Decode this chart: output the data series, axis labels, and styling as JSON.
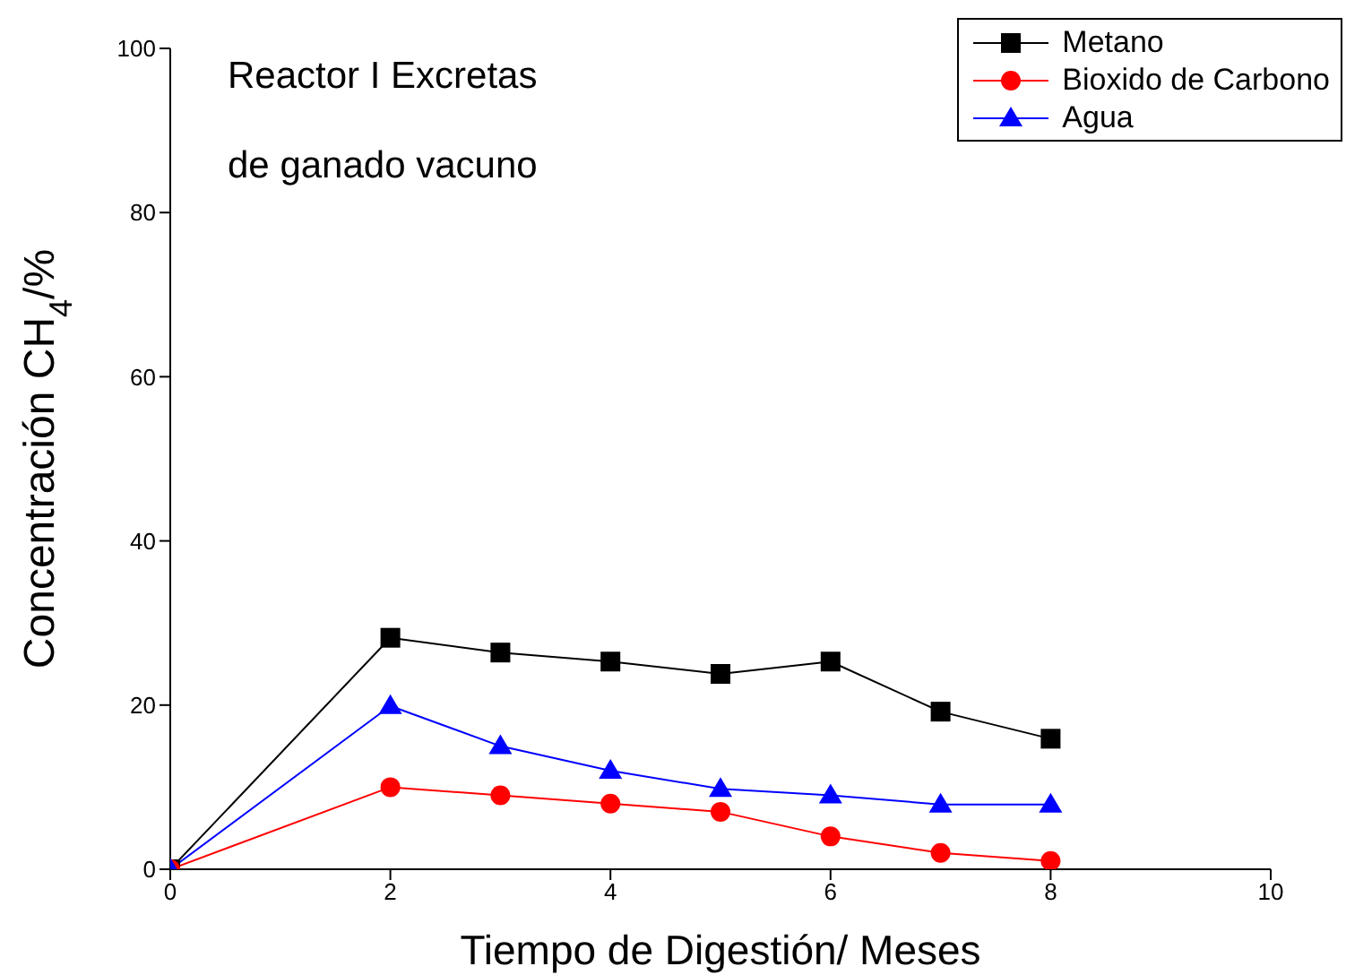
{
  "chart_data": {
    "type": "line",
    "xlabel": "Tiempo de Digestión/ Meses",
    "ylabel": "Concentración CH$_{4}$/%",
    "annotations": [
      "Reactor I  Excretas",
      "de ganado vacuno"
    ],
    "x": [
      0,
      2,
      3,
      4,
      5,
      6,
      7,
      8
    ],
    "series": [
      {
        "name": "Metano",
        "color": "#000000",
        "marker": "square",
        "values": [
          0,
          28.2,
          26.4,
          25.3,
          23.8,
          25.3,
          19.2,
          15.9
        ]
      },
      {
        "name": "Bioxido de Carbono",
        "color": "#ff0000",
        "marker": "circle",
        "values": [
          0,
          10,
          9,
          8,
          7,
          4,
          2,
          1
        ]
      },
      {
        "name": "Agua",
        "color": "#0000ff",
        "marker": "triangle",
        "values": [
          0,
          19.9,
          15,
          12,
          9.8,
          9,
          7.9,
          7.9
        ]
      }
    ],
    "xlim": [
      0,
      10
    ],
    "xticks": [
      0,
      2,
      4,
      6,
      8,
      10
    ],
    "ylim": [
      0,
      100
    ],
    "yticks": [
      0,
      20,
      40,
      60,
      80,
      100
    ],
    "grid": false,
    "legend": "top right"
  }
}
